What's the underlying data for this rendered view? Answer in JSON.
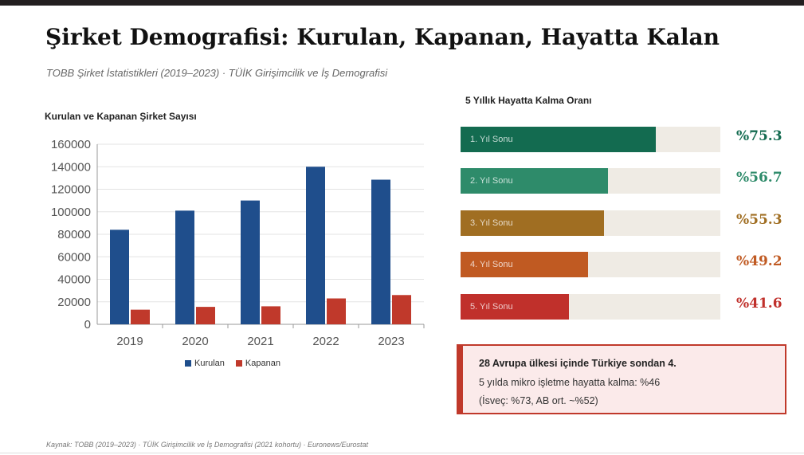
{
  "header": {
    "title": "Şirket Demografisi: Kurulan, Kapanan, Hayatta Kalan",
    "subtitle": "TOBB Şirket İstatistikleri (2019–2023) · TÜİK Girişimcilik ve İş Demografisi"
  },
  "chart_data": [
    {
      "type": "bar",
      "title": "Kurulan ve Kapanan Şirket Sayısı",
      "categories": [
        "2019",
        "2020",
        "2021",
        "2022",
        "2023"
      ],
      "series": [
        {
          "name": "Kurulan",
          "values": [
            84000,
            101000,
            110000,
            140000,
            128500
          ],
          "color": "#1f4e8c"
        },
        {
          "name": "Kapanan",
          "values": [
            13000,
            15500,
            16000,
            23000,
            26000
          ],
          "color": "#c0392b"
        }
      ],
      "ylim": [
        0,
        160000
      ],
      "yticks": [
        0,
        20000,
        40000,
        60000,
        80000,
        100000,
        120000,
        140000,
        160000
      ],
      "grid": true,
      "legend": "bottom"
    },
    {
      "type": "bar",
      "orientation": "horizontal",
      "title": "5 Yıllık Hayatta Kalma Oranı",
      "categories": [
        "1. Yıl Sonu",
        "2. Yıl Sonu",
        "3. Yıl Sonu",
        "4. Yıl Sonu",
        "5. Yıl Sonu"
      ],
      "values": [
        75.3,
        56.7,
        55.3,
        49.2,
        41.6
      ],
      "value_labels": [
        "%75.3",
        "%56.7",
        "%55.3",
        "%49.2",
        "%41.6"
      ],
      "colors": [
        "#136b50",
        "#2e8b6a",
        "#a06e22",
        "#c05a22",
        "#c0302b"
      ],
      "xlim": [
        0,
        100
      ]
    }
  ],
  "callout": {
    "headline": "28 Avrupa ülkesi içinde Türkiye sondan 4.",
    "line1": "5 yılda mikro işletme hayatta kalma: %46",
    "line2": "(İsveç: %73, AB ort. ~%52)"
  },
  "footer": {
    "source": "Kaynak: TOBB (2019–2023) · TÜİK Girişimcilik ve İş Demografisi (2021 kohortu) · Euronews/Eurostat"
  }
}
